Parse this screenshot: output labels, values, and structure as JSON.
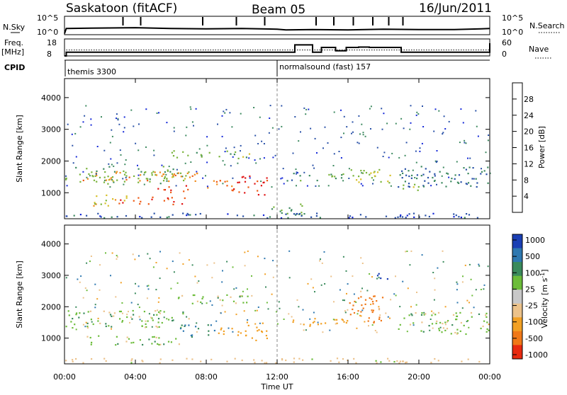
{
  "header": {
    "station": "Saskatoon (fitACF)",
    "beam": "Beam 05",
    "date": "16/Jun/2011"
  },
  "panel_labels": {
    "nsky": "N.Sky",
    "nsearch": "N.Search",
    "freq_line1": "Freq.",
    "freq_line2": "[MHz]",
    "nave": "Nave",
    "cpid": "CPID",
    "cpid_1": "themis 3300",
    "cpid_2": "normalsound (fast) 157"
  },
  "noise_axis": {
    "left": [
      "10^5",
      "10^0"
    ],
    "right": [
      "10^5",
      "10^0"
    ]
  },
  "freq_axis": {
    "left": [
      "18",
      "8"
    ],
    "right": [
      "60",
      "0"
    ]
  },
  "x_axis": {
    "label": "Time UT",
    "ticks": [
      "00:00",
      "04:00",
      "08:00",
      "12:00",
      "16:00",
      "20:00",
      "00:00"
    ],
    "range_hours": [
      0,
      24
    ]
  },
  "y_axis": {
    "label": "Slant Range [km]",
    "ticks": [
      "1000",
      "2000",
      "3000",
      "4000"
    ],
    "range_km": [
      180,
      4600
    ]
  },
  "power_colorbar": {
    "title": "Power [dB]",
    "ticks": [
      "4",
      "8",
      "12",
      "16",
      "20",
      "24",
      "28"
    ],
    "colors": [
      "#1428d8",
      "#2a52a8",
      "#3e8a60",
      "#7ab43c",
      "#d6c02a",
      "#f08c1c",
      "#ee5a14",
      "#e01414"
    ]
  },
  "velocity_colorbar": {
    "title": "Velocity [m s^-1]",
    "ticks": [
      "1000",
      "500",
      "100",
      "25",
      "-25",
      "-100",
      "-500",
      "-1000"
    ],
    "colors": [
      "#1a3fb4",
      "#2e78b0",
      "#3a8a5c",
      "#6cbc3a",
      "#c8c8c8",
      "#ecc28a",
      "#f2a024",
      "#f07818",
      "#e82a10"
    ]
  },
  "chart_data": [
    {
      "type": "line",
      "name": "noise",
      "x_hours": [
        0,
        0.1,
        2,
        4,
        6,
        8,
        10,
        12,
        12.5,
        14,
        16,
        18,
        20,
        22,
        23.5,
        24
      ],
      "n_sky_log10": [
        0.3,
        1.7,
        1.8,
        1.9,
        1.7,
        1.6,
        1.7,
        1.5,
        1.3,
        1.4,
        1.3,
        1.5,
        1.4,
        1.4,
        1.6,
        1.7
      ],
      "spike_hours": [
        3.3,
        4.3,
        7.8,
        9.7,
        11.3,
        14.2,
        15.2,
        16.3,
        17.4,
        18.3,
        19.1
      ]
    },
    {
      "type": "line",
      "name": "frequency / nave",
      "x_hours": [
        0,
        0.1,
        12,
        13.0,
        14.0,
        14.5,
        15.3,
        15.9,
        16.6,
        17.2,
        18.2,
        19.0,
        23.7,
        24
      ],
      "freq_mhz": [
        8,
        10.2,
        10.2,
        14.5,
        10.2,
        13.0,
        11.0,
        13.0,
        13.2,
        13.0,
        13.0,
        10.2,
        10.2,
        15.5
      ],
      "nave_dotted_mhz_equiv": 11.5,
      "cpid_switch_hour": 12.0
    },
    {
      "type": "heatmap",
      "name": "power",
      "x_range_hours": [
        0,
        24
      ],
      "y_range_km": [
        180,
        4600
      ],
      "clim": [
        0,
        30
      ],
      "blobs": [
        {
          "t0": 0.0,
          "t1": 7.0,
          "r0": 1300,
          "r1": 1850,
          "v": 13
        },
        {
          "t0": 1.0,
          "t1": 7.5,
          "r0": 1380,
          "r1": 1700,
          "v": 22
        },
        {
          "t0": 1.5,
          "t1": 3.5,
          "r0": 600,
          "r1": 1000,
          "v": 18
        },
        {
          "t0": 3.0,
          "t1": 7.0,
          "r0": 650,
          "r1": 900,
          "v": 28
        },
        {
          "t0": 5.0,
          "t1": 7.0,
          "r0": 1000,
          "r1": 1250,
          "v": 27
        },
        {
          "t0": 6.0,
          "t1": 10.5,
          "r0": 2100,
          "r1": 2350,
          "v": 14
        },
        {
          "t0": 8.0,
          "t1": 9.8,
          "r0": 1050,
          "r1": 1450,
          "v": 24
        },
        {
          "t0": 9.5,
          "t1": 11.4,
          "r0": 950,
          "r1": 1550,
          "v": 29
        },
        {
          "t0": 11.5,
          "t1": 13.5,
          "r0": 300,
          "r1": 700,
          "v": 11
        },
        {
          "t0": 12.5,
          "t1": 16.0,
          "r0": 1400,
          "r1": 1650,
          "v": 10
        },
        {
          "t0": 16.0,
          "t1": 18.5,
          "r0": 1300,
          "r1": 1800,
          "v": 16
        },
        {
          "t0": 18.8,
          "t1": 24.0,
          "r0": 1200,
          "r1": 1850,
          "v": 8
        },
        {
          "t0": 19.0,
          "t1": 20.5,
          "r0": 1100,
          "r1": 1350,
          "v": 14
        },
        {
          "t0": 0.0,
          "t1": 24.0,
          "r0": 180,
          "r1": 380,
          "v": 6
        }
      ]
    },
    {
      "type": "heatmap",
      "name": "velocity",
      "x_range_hours": [
        0,
        24
      ],
      "y_range_km": [
        180,
        4600
      ],
      "blobs": [
        {
          "t0": 0.0,
          "t1": 7.0,
          "r0": 1350,
          "r1": 1900,
          "v": 0
        },
        {
          "t0": 1.0,
          "t1": 6.5,
          "r0": 800,
          "r1": 1100,
          "v": 0
        },
        {
          "t0": 6.5,
          "t1": 8.5,
          "r0": 1000,
          "r1": 1450,
          "v": 120
        },
        {
          "t0": 8.5,
          "t1": 9.8,
          "r0": 1050,
          "r1": 1400,
          "v": -300
        },
        {
          "t0": 9.8,
          "t1": 11.4,
          "r0": 950,
          "r1": 1550,
          "v": -150
        },
        {
          "t0": 6.0,
          "t1": 10.5,
          "r0": 2100,
          "r1": 2400,
          "v": 0
        },
        {
          "t0": 12.5,
          "t1": 16.0,
          "r0": 1350,
          "r1": 1650,
          "v": -400
        },
        {
          "t0": 16.0,
          "t1": 18.0,
          "r0": 1500,
          "r1": 2400,
          "v": -800
        },
        {
          "t0": 18.8,
          "t1": 24.0,
          "r0": 1150,
          "r1": 1850,
          "v": 0
        },
        {
          "t0": 17.5,
          "t1": 18.3,
          "r0": 2900,
          "r1": 3200,
          "v": 600
        },
        {
          "t0": 0.0,
          "t1": 24.0,
          "r0": 180,
          "r1": 380,
          "v": -60
        }
      ]
    }
  ]
}
